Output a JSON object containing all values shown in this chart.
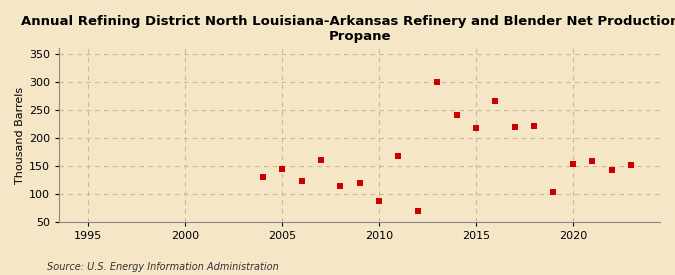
{
  "years": [
    2004,
    2005,
    2006,
    2007,
    2008,
    2009,
    2010,
    2011,
    2012,
    2013,
    2014,
    2015,
    2016,
    2017,
    2018,
    2019,
    2020,
    2021,
    2022,
    2023
  ],
  "values": [
    130,
    145,
    122,
    160,
    113,
    120,
    87,
    168,
    70,
    300,
    240,
    218,
    265,
    220,
    222,
    103,
    153,
    158,
    143,
    152
  ],
  "marker_color": "#cc0000",
  "marker_size": 5,
  "title_line1": "Annual Refining District North Louisiana-Arkansas Refinery and Blender Net Production of",
  "title_line2": "Propane",
  "ylabel": "Thousand Barrels",
  "source": "Source: U.S. Energy Information Administration",
  "xlim": [
    1993.5,
    2024.5
  ],
  "ylim": [
    50,
    360
  ],
  "xticks": [
    1995,
    2000,
    2005,
    2010,
    2015,
    2020
  ],
  "yticks": [
    50,
    100,
    150,
    200,
    250,
    300,
    350
  ],
  "background_color": "#f5e6c8",
  "grid_color": "#c8b89a",
  "title_fontsize": 9.5,
  "label_fontsize": 8,
  "tick_fontsize": 8,
  "source_fontsize": 7
}
